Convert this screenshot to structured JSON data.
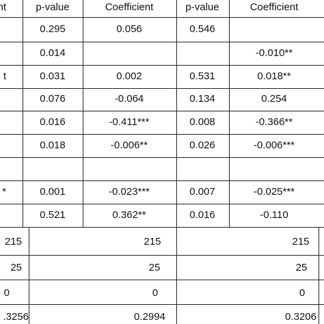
{
  "header": {
    "col0_fragment": "nt",
    "pvalue_1": "p-value",
    "coefficient_1": "Coefficient",
    "pvalue_2": "p-value",
    "coefficient_2": "Coefficient"
  },
  "rows": [
    {
      "left": "",
      "p1": "0.295",
      "c2": "0.056",
      "p2": "0.546",
      "c3": ""
    },
    {
      "left": "",
      "p1": "0.014",
      "c2": "",
      "p2": "",
      "c3": "-0.010**"
    },
    {
      "left": "t",
      "p1": "0.031",
      "c2": "0.002",
      "p2": "0.531",
      "c3": "0.018**"
    },
    {
      "left": "",
      "p1": "0.076",
      "c2": "-0.064",
      "p2": "0.134",
      "c3": "0.254"
    },
    {
      "left": "",
      "p1": "0.016",
      "c2": "-0.411***",
      "p2": "0.008",
      "c3": "-0.366**"
    },
    {
      "left": "",
      "p1": "0.018",
      "c2": "-0.006**",
      "p2": "0.026",
      "c3": "-0.006***"
    },
    {
      "left": "",
      "p1": "",
      "c2": "",
      "p2": "",
      "c3": ""
    },
    {
      "left": "*",
      "p1": "0.001",
      "c2": "-0.023***",
      "p2": "0.007",
      "c3": "-0.025***"
    },
    {
      "left": "",
      "p1": "0.521",
      "c2": "0.362**",
      "p2": "0.016",
      "c3": "-0.110"
    }
  ],
  "summary": [
    {
      "a": "215",
      "b": "215",
      "c": "215"
    },
    {
      "a": "25",
      "b": "25",
      "c": "25"
    },
    {
      "a": "0",
      "b": "0",
      "c": "0"
    },
    {
      "a": ".3256",
      "b": "0.2994",
      "c": "0.3206"
    }
  ]
}
